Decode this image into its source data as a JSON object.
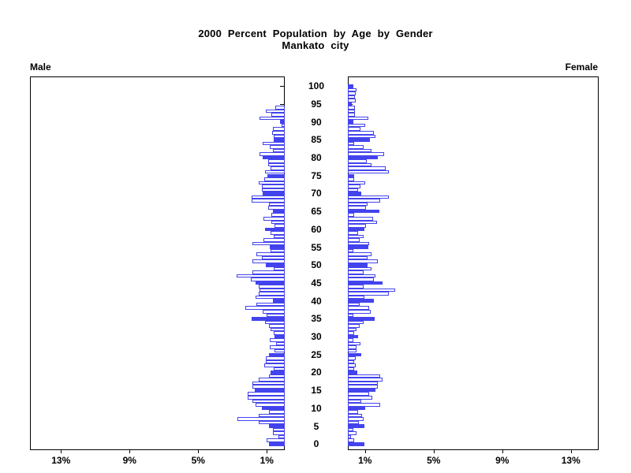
{
  "title": {
    "line1": "2000 Percent Population by Age by Gender",
    "line2": "Mankato city"
  },
  "panel_labels": {
    "left": "Male",
    "right": "Female"
  },
  "colors": {
    "bar_outline": "#4343ee",
    "bar_solid_fill": "#4343ee",
    "bar_empty_fill": "#ffffff",
    "axis": "#000000",
    "text": "#000000",
    "background": "#ffffff"
  },
  "chart_data": {
    "type": "bar",
    "subtype": "population_pyramid",
    "title": "2000 Percent Population by Age by Gender",
    "subtitle": "Mankato city",
    "left_label": "Male",
    "right_label": "Female",
    "unit": "percent of total population per single year of age",
    "x_ticks": [
      1,
      5,
      9,
      13
    ],
    "x_tick_labels": [
      "1%",
      "5%",
      "9%",
      "13%"
    ],
    "x_max": 14.8,
    "age_min": 0,
    "age_max": 100,
    "age_tick_step": 5,
    "age_tick_labels": [
      "0",
      "5",
      "10",
      "15",
      "20",
      "25",
      "30",
      "35",
      "40",
      "45",
      "50",
      "55",
      "60",
      "65",
      "70",
      "75",
      "80",
      "85",
      "90",
      "95",
      "100"
    ],
    "highlight_rule": "bars at ages divisible by 5 are solid blue; all other ages are white with blue outline",
    "grid": false,
    "series": [
      {
        "name": "Male",
        "side": "left",
        "values_by_age_0_to_100": [
          0.9,
          1.05,
          0.35,
          0.7,
          0.7,
          0.9,
          1.5,
          2.75,
          1.5,
          0.92,
          1.35,
          1.7,
          1.9,
          2.15,
          2.15,
          1.75,
          1.9,
          1.9,
          1.5,
          0.92,
          0.85,
          0.66,
          1.2,
          1.1,
          1.1,
          0.9,
          0.58,
          0.86,
          0.5,
          0.86,
          0.6,
          0.66,
          0.81,
          0.9,
          1.15,
          1.93,
          1.05,
          1.27,
          2.3,
          1.66,
          0.7,
          1.69,
          1.5,
          1.45,
          1.5,
          1.69,
          2.0,
          2.8,
          1.89,
          0.66,
          1.1,
          1.89,
          1.35,
          1.66,
          0.81,
          0.89,
          1.89,
          1.23,
          0.66,
          0.81,
          1.16,
          0.58,
          0.77,
          1.23,
          0.77,
          0.69,
          0.97,
          0.92,
          1.92,
          1.92,
          1.27,
          1.35,
          1.32,
          1.5,
          1.2,
          1.0,
          1.16,
          0.81,
          0.97,
          0.97,
          1.3,
          1.46,
          0.69,
          0.89,
          1.3,
          0.66,
          0.66,
          0.74,
          0.69,
          0.2,
          0.28,
          1.47,
          0.77,
          1.1,
          0.55,
          0.0,
          0.0,
          0.0,
          0.0,
          0.0,
          0.0
        ]
      },
      {
        "name": "Female",
        "side": "right",
        "values_by_age_0_to_100": [
          0.95,
          0.38,
          0.2,
          0.51,
          0.31,
          0.97,
          0.66,
          0.92,
          0.84,
          0.61,
          1.0,
          1.9,
          0.77,
          1.43,
          1.23,
          1.61,
          1.73,
          1.76,
          2.04,
          1.9,
          0.55,
          0.38,
          0.46,
          0.38,
          0.45,
          0.77,
          0.51,
          0.51,
          0.72,
          0.31,
          0.61,
          0.38,
          0.51,
          0.69,
          0.92,
          1.58,
          0.31,
          1.35,
          1.23,
          0.69,
          1.5,
          0.97,
          2.37,
          2.76,
          0.92,
          2.04,
          1.5,
          1.61,
          0.92,
          1.38,
          1.15,
          1.75,
          1.15,
          1.38,
          0.34,
          1.18,
          1.23,
          0.69,
          0.92,
          0.61,
          0.97,
          1.07,
          1.69,
          1.46,
          0.38,
          1.84,
          1.07,
          1.15,
          1.9,
          2.37,
          0.77,
          0.6,
          0.72,
          1.0,
          0.35,
          0.38,
          2.37,
          2.2,
          1.38,
          1.1,
          1.76,
          2.1,
          1.4,
          0.92,
          0.35,
          1.3,
          1.6,
          1.53,
          0.72,
          1.0,
          0.3,
          1.2,
          0.4,
          0.4,
          0.4,
          0.25,
          0.45,
          0.4,
          0.45,
          0.5,
          0.3
        ]
      }
    ]
  }
}
